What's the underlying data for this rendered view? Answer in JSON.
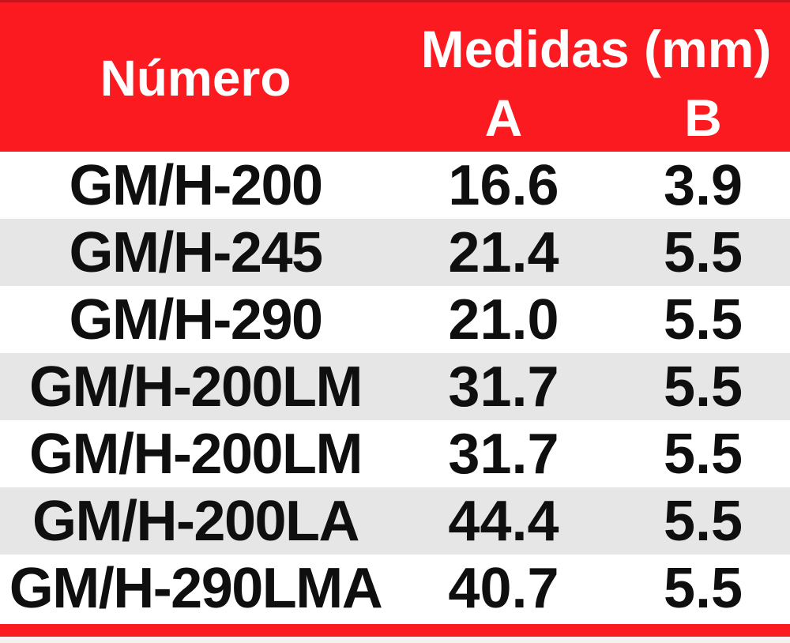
{
  "table": {
    "header": {
      "numero": "Número",
      "medidas": "Medidas (mm)",
      "col_a": "A",
      "col_b": "B"
    },
    "rows": [
      {
        "numero": "GM/H-200",
        "a": "16.6",
        "b": "3.9"
      },
      {
        "numero": "GM/H-245",
        "a": "21.4",
        "b": "5.5"
      },
      {
        "numero": "GM/H-290",
        "a": "21.0",
        "b": "5.5"
      },
      {
        "numero": "GM/H-200LM",
        "a": "31.7",
        "b": "5.5"
      },
      {
        "numero": "GM/H-200LM",
        "a": "31.7",
        "b": "5.5"
      },
      {
        "numero": "GM/H-200LA",
        "a": "44.4",
        "b": "5.5"
      },
      {
        "numero": "GM/H-290LMA",
        "a": "40.7",
        "b": "5.5"
      }
    ]
  },
  "chart_data": {
    "type": "table",
    "title": "Medidas (mm)",
    "columns": [
      "Número",
      "A",
      "B"
    ],
    "rows": [
      [
        "GM/H-200",
        16.6,
        3.9
      ],
      [
        "GM/H-245",
        21.4,
        5.5
      ],
      [
        "GM/H-290",
        21.0,
        5.5
      ],
      [
        "GM/H-200LM",
        31.7,
        5.5
      ],
      [
        "GM/H-200LM",
        31.7,
        5.5
      ],
      [
        "GM/H-200LA",
        44.4,
        5.5
      ],
      [
        "GM/H-290LMA",
        40.7,
        5.5
      ]
    ]
  },
  "colors": {
    "header_red": "#fb1a1f",
    "header_red_dark": "#c8141a",
    "row_alt": "#e7e6e6",
    "row_white": "#ffffff",
    "text": "#0f0f0f",
    "header_text": "#ffffff",
    "footer_bar_red": "#fb1a1f",
    "bottom_strip": "#f5f1f1"
  }
}
